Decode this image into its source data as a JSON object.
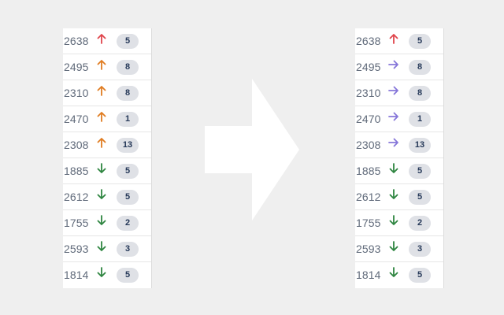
{
  "colors": {
    "up_red": "#e0454c",
    "up_orange": "#e07c21",
    "right_purple": "#8777d9",
    "down_green": "#2e8540",
    "badge_bg": "#dfe1e6",
    "badge_text": "#253858",
    "background": "#efefef"
  },
  "before": {
    "rows": [
      {
        "id": "2638",
        "priority_icon": "arrow-up-icon",
        "color": "#e0454c",
        "points": "5"
      },
      {
        "id": "2495",
        "priority_icon": "arrow-up-icon",
        "color": "#e07c21",
        "points": "8"
      },
      {
        "id": "2310",
        "priority_icon": "arrow-up-icon",
        "color": "#e07c21",
        "points": "8"
      },
      {
        "id": "2470",
        "priority_icon": "arrow-up-icon",
        "color": "#e07c21",
        "points": "1"
      },
      {
        "id": "2308",
        "priority_icon": "arrow-up-icon",
        "color": "#e07c21",
        "points": "13"
      },
      {
        "id": "1885",
        "priority_icon": "arrow-down-icon",
        "color": "#2e8540",
        "points": "5"
      },
      {
        "id": "2612",
        "priority_icon": "arrow-down-icon",
        "color": "#2e8540",
        "points": "5"
      },
      {
        "id": "1755",
        "priority_icon": "arrow-down-icon",
        "color": "#2e8540",
        "points": "2"
      },
      {
        "id": "2593",
        "priority_icon": "arrow-down-icon",
        "color": "#2e8540",
        "points": "3"
      },
      {
        "id": "1814",
        "priority_icon": "arrow-down-icon",
        "color": "#2e8540",
        "points": "5"
      }
    ]
  },
  "after": {
    "rows": [
      {
        "id": "2638",
        "priority_icon": "arrow-up-icon",
        "color": "#e0454c",
        "points": "5"
      },
      {
        "id": "2495",
        "priority_icon": "arrow-right-icon",
        "color": "#8777d9",
        "points": "8"
      },
      {
        "id": "2310",
        "priority_icon": "arrow-right-icon",
        "color": "#8777d9",
        "points": "8"
      },
      {
        "id": "2470",
        "priority_icon": "arrow-right-icon",
        "color": "#8777d9",
        "points": "1"
      },
      {
        "id": "2308",
        "priority_icon": "arrow-right-icon",
        "color": "#8777d9",
        "points": "13"
      },
      {
        "id": "1885",
        "priority_icon": "arrow-down-icon",
        "color": "#2e8540",
        "points": "5"
      },
      {
        "id": "2612",
        "priority_icon": "arrow-down-icon",
        "color": "#2e8540",
        "points": "5"
      },
      {
        "id": "1755",
        "priority_icon": "arrow-down-icon",
        "color": "#2e8540",
        "points": "2"
      },
      {
        "id": "2593",
        "priority_icon": "arrow-down-icon",
        "color": "#2e8540",
        "points": "3"
      },
      {
        "id": "1814",
        "priority_icon": "arrow-down-icon",
        "color": "#2e8540",
        "points": "5"
      }
    ]
  },
  "transition_icon": "big-right-arrow-icon"
}
